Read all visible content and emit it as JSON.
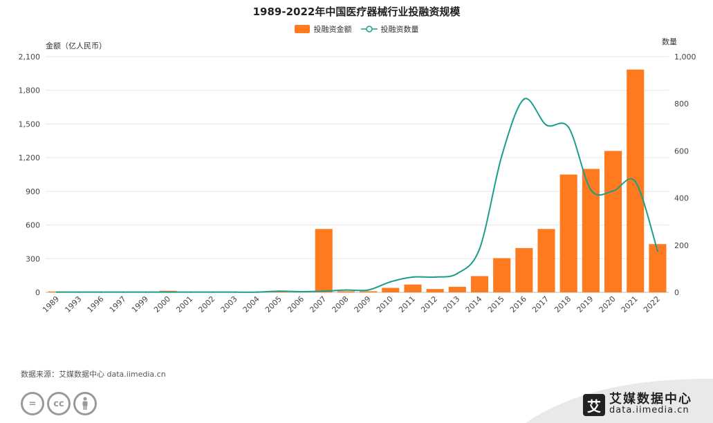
{
  "title": "1989-2022年中国医疗器械行业投融资规模",
  "legend": {
    "bar_label": "投融资金额",
    "line_label": "投融资数量"
  },
  "colors": {
    "bar": "#ff7a1f",
    "line": "#1a9e8a",
    "grid": "#e6e6e6"
  },
  "chart_data": {
    "type": "bar",
    "title": "1989-2022年中国医疗器械行业投融资规模",
    "categories": [
      "1989",
      "1993",
      "1996",
      "1997",
      "1999",
      "2000",
      "2001",
      "2002",
      "2003",
      "2004",
      "2005",
      "2006",
      "2007",
      "2008",
      "2009",
      "2010",
      "2011",
      "2012",
      "2013",
      "2014",
      "2015",
      "2016",
      "2017",
      "2018",
      "2019",
      "2020",
      "2021",
      "2022"
    ],
    "ylabel": "金额（亿人民币）",
    "y2label": "数量",
    "ylim": [
      0,
      2100
    ],
    "y2lim": [
      0,
      1000
    ],
    "yticks": [
      "0",
      "300",
      "600",
      "900",
      "1,200",
      "1,500",
      "1,800",
      "2,100"
    ],
    "y2ticks": [
      "0",
      "200",
      "400",
      "600",
      "800",
      "1,000"
    ],
    "grid": true,
    "legend_position": "top",
    "series": [
      {
        "name": "投融资金额",
        "type": "bar",
        "axis": "left",
        "values": [
          8,
          3,
          2,
          3,
          4,
          14,
          4,
          2,
          2,
          2,
          6,
          4,
          565,
          10,
          10,
          40,
          70,
          30,
          50,
          145,
          305,
          395,
          565,
          1050,
          1100,
          1260,
          1985,
          430
        ]
      },
      {
        "name": "投融资数量",
        "type": "line",
        "axis": "right",
        "values": [
          1,
          1,
          1,
          1,
          1,
          1,
          1,
          1,
          1,
          1,
          5,
          3,
          5,
          10,
          10,
          45,
          65,
          65,
          80,
          185,
          580,
          820,
          710,
          700,
          435,
          430,
          470,
          175
        ]
      }
    ]
  },
  "footer": {
    "source": "数据来源：艾媒数据中心 data.iimedia.cn",
    "brand_name": "艾媒数据中心",
    "brand_url": "data.iimedia.cn",
    "brand_logo_char": "艾",
    "license_icons": [
      "equals-icon",
      "cc-icon",
      "person-icon"
    ]
  }
}
